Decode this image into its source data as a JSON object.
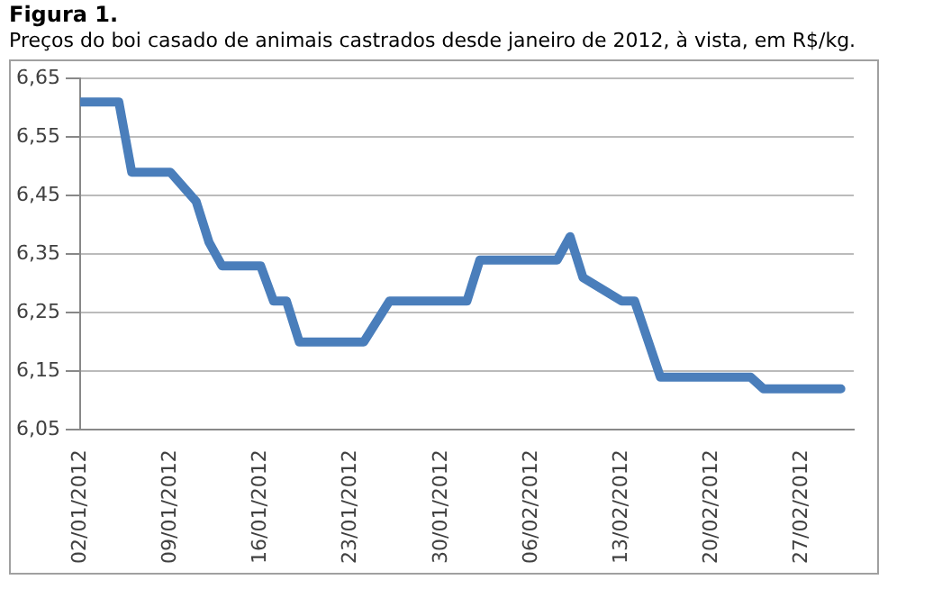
{
  "chart_data": {
    "type": "line",
    "title": "Figura 1.",
    "subtitle": "Preços do boi casado de animais castrados desde janeiro de 2012, à vista,  em R$/kg.",
    "x": [
      "2012-01-02",
      "2012-01-05",
      "2012-01-06",
      "2012-01-09",
      "2012-01-11",
      "2012-01-12",
      "2012-01-13",
      "2012-01-16",
      "2012-01-17",
      "2012-01-18",
      "2012-01-19",
      "2012-01-24",
      "2012-01-26",
      "2012-02-01",
      "2012-02-02",
      "2012-02-08",
      "2012-02-09",
      "2012-02-10",
      "2012-02-13",
      "2012-02-14",
      "2012-02-16",
      "2012-02-23",
      "2012-02-24",
      "2012-03-01"
    ],
    "series": [
      {
        "color": "#4a7ebb",
        "values": [
          6.61,
          6.61,
          6.49,
          6.49,
          6.44,
          6.37,
          6.33,
          6.33,
          6.27,
          6.27,
          6.2,
          6.2,
          6.27,
          6.27,
          6.34,
          6.34,
          6.38,
          6.31,
          6.27,
          6.27,
          6.14,
          6.14,
          6.12,
          6.12
        ]
      }
    ],
    "xlim": [
      "2012-01-02",
      "2012-03-02"
    ],
    "xticks": [
      {
        "value": "2012-01-02",
        "label": "02/01/2012"
      },
      {
        "value": "2012-01-09",
        "label": "09/01/2012"
      },
      {
        "value": "2012-01-16",
        "label": "16/01/2012"
      },
      {
        "value": "2012-01-23",
        "label": "23/01/2012"
      },
      {
        "value": "2012-01-30",
        "label": "30/01/2012"
      },
      {
        "value": "2012-02-06",
        "label": "06/02/2012"
      },
      {
        "value": "2012-02-13",
        "label": "13/02/2012"
      },
      {
        "value": "2012-02-20",
        "label": "20/02/2012"
      },
      {
        "value": "2012-02-27",
        "label": "27/02/2012"
      }
    ],
    "ylim": [
      6.05,
      6.65
    ],
    "yticks": [
      {
        "value": 6.05,
        "label": "6,05"
      },
      {
        "value": 6.15,
        "label": "6,15"
      },
      {
        "value": 6.25,
        "label": "6,25"
      },
      {
        "value": 6.35,
        "label": "6,35"
      },
      {
        "value": 6.45,
        "label": "6,45"
      },
      {
        "value": 6.55,
        "label": "6,55"
      },
      {
        "value": 6.65,
        "label": "6,65"
      }
    ],
    "grid": "y",
    "legend": false,
    "marker": "none",
    "line_style": "solid"
  }
}
